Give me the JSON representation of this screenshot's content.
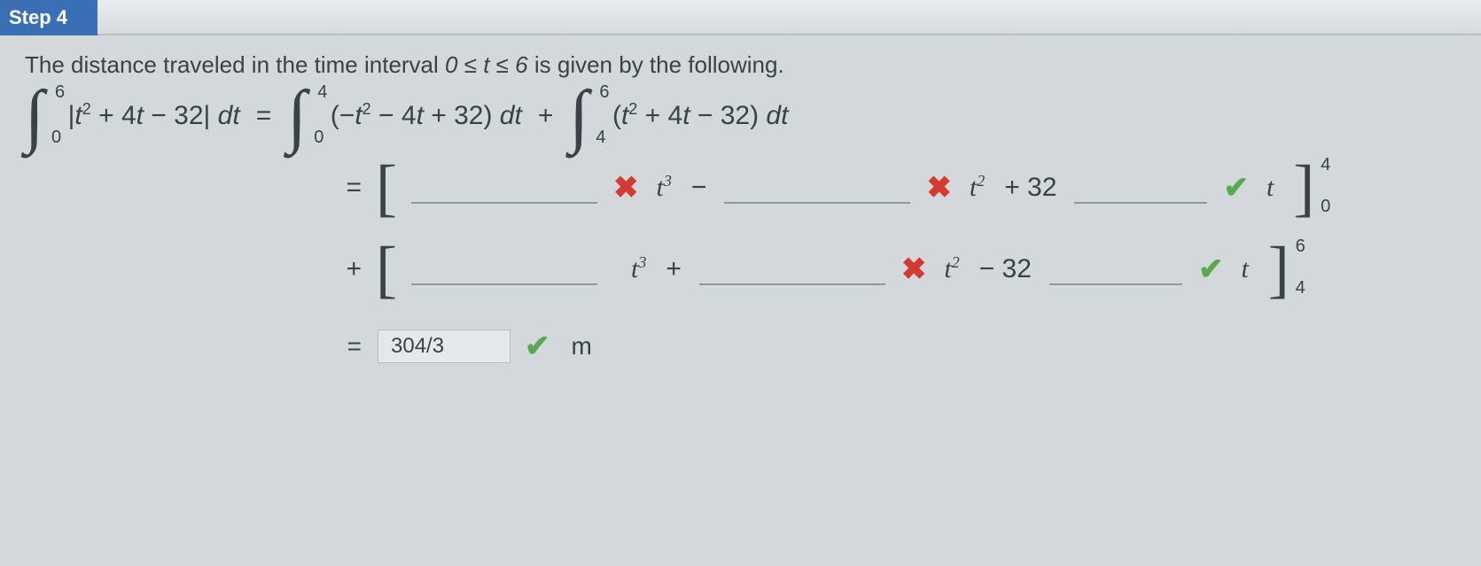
{
  "step": {
    "label": "Step 4"
  },
  "prompt": {
    "lead": "The distance traveled in the time interval ",
    "interval": "0 ≤ t ≤ 6",
    "trail": " is given by the following."
  },
  "equation": {
    "lhs": {
      "lower": "0",
      "upper": "6",
      "integrand_pre": "|",
      "var": "t",
      "integrand": "² + 4t − 32| ",
      "dt": "dt"
    },
    "eq": "=",
    "rhs1": {
      "lower": "0",
      "upper": "4",
      "integrand": "(−t² − 4t + 32) ",
      "dt": "dt"
    },
    "plus": "+",
    "rhs2": {
      "lower": "4",
      "upper": "6",
      "integrand": "(t² + 4t − 32) ",
      "dt": "dt"
    }
  },
  "line1": {
    "lead": "=",
    "blank1": "",
    "mark1": "✖",
    "term1": "t³",
    "op1": "−",
    "blank2": "",
    "mark2": "✖",
    "term2": "t²",
    "op2": "+ 32",
    "blank3": "",
    "mark3": "✔",
    "evalvar": "t",
    "eval_upper": "4",
    "eval_lower": "0"
  },
  "line2": {
    "lead": "+",
    "blank1": "",
    "mark1": " ",
    "term1": "t³",
    "op1": "+",
    "blank2": "",
    "mark2": "✖",
    "term2": "t²",
    "op2": "− 32",
    "blank3": "",
    "mark3": "✔",
    "evalvar": "t",
    "eval_upper": "6",
    "eval_lower": "4"
  },
  "final": {
    "eq": "=",
    "value": "304/3",
    "mark": "✔",
    "unit": "m"
  },
  "colors": {
    "page_bg": "#d3d8db",
    "header_bg": "#3b6fb5",
    "header_text": "#ffffff",
    "text": "#3a4247",
    "wrong": "#d43a2f",
    "correct": "#5aa84f",
    "underline": "#8f989d",
    "answer_bg": "#e4e8ea",
    "answer_border": "#b8c0c4"
  }
}
